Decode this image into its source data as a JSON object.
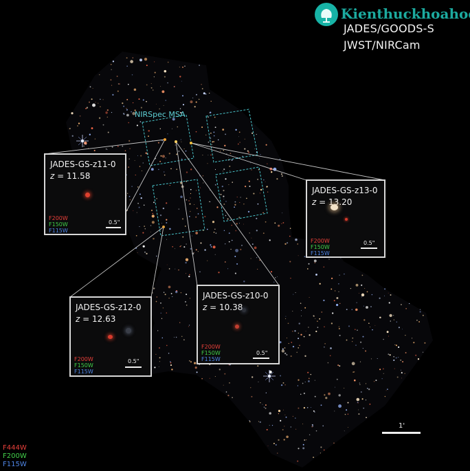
{
  "header": {
    "line1": "JADES/GOODS-S",
    "line2": "JWST/NIRCam"
  },
  "watermark": {
    "text": "Kienthuckhoahoc"
  },
  "msa_label": "NIRSpec MSA",
  "insets": [
    {
      "name": "JADES-GS-z11-0",
      "z_prefix": "z",
      "z_value": " = 11.58",
      "scale": "0.5\"",
      "filters": [
        "F200W",
        "F150W",
        "F115W"
      ]
    },
    {
      "name": "JADES-GS-z13-0",
      "z_prefix": "z",
      "z_value": " = 13.20",
      "scale": "0.5\"",
      "filters": [
        "F200W",
        "F150W",
        "F115W"
      ]
    },
    {
      "name": "JADES-GS-z12-0",
      "z_prefix": "z",
      "z_value": " = 12.63",
      "scale": "0.5\"",
      "filters": [
        "F200W",
        "F150W",
        "F115W"
      ]
    },
    {
      "name": "JADES-GS-z10-0",
      "z_prefix": "z",
      "z_value": " = 10.38",
      "scale": "0.5\"",
      "filters": [
        "F200W",
        "F150W",
        "F115W"
      ]
    }
  ],
  "legend": [
    "F444W",
    "F200W",
    "F115W"
  ],
  "big_scale": "1'",
  "colors": {
    "red": "#e8403a",
    "green": "#42d04a",
    "blue": "#4f86e6",
    "cyan": "#5fd1d6",
    "frame": "#d8d8d8"
  }
}
